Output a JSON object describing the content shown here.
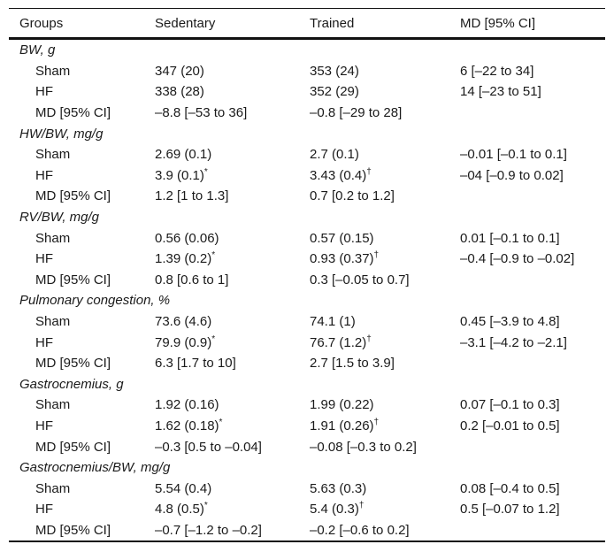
{
  "table": {
    "columns": [
      "Groups",
      "Sedentary",
      "Trained",
      "MD [95% CI]"
    ],
    "significance_markers": {
      "sedentary_hf": "*",
      "trained_hf": "†"
    },
    "sections": [
      {
        "header": "BW, g",
        "rows": [
          {
            "label": "Sham",
            "sedentary": "347 (20)",
            "sedentary_sup": "",
            "trained": "353 (24)",
            "trained_sup": "",
            "md": "6 [–22 to 34]"
          },
          {
            "label": "HF",
            "sedentary": "338 (28)",
            "sedentary_sup": "",
            "trained": "352 (29)",
            "trained_sup": "",
            "md": "14 [–23 to 51]"
          },
          {
            "label": "MD [95% CI]",
            "sedentary": "–8.8 [–53 to 36]",
            "sedentary_sup": "",
            "trained": "–0.8 [–29 to 28]",
            "trained_sup": "",
            "md": ""
          }
        ]
      },
      {
        "header": "HW/BW, mg/g",
        "rows": [
          {
            "label": "Sham",
            "sedentary": "2.69 (0.1)",
            "sedentary_sup": "",
            "trained": "2.7 (0.1)",
            "trained_sup": "",
            "md": "–0.01 [–0.1 to 0.1]"
          },
          {
            "label": "HF",
            "sedentary": "3.9 (0.1)",
            "sedentary_sup": "*",
            "trained": "3.43 (0.4)",
            "trained_sup": "†",
            "md": "–04 [–0.9 to 0.02]"
          },
          {
            "label": "MD [95% CI]",
            "sedentary": "1.2 [1 to 1.3]",
            "sedentary_sup": "",
            "trained": "0.7 [0.2 to 1.2]",
            "trained_sup": "",
            "md": ""
          }
        ]
      },
      {
        "header": "RV/BW, mg/g",
        "rows": [
          {
            "label": "Sham",
            "sedentary": "0.56 (0.06)",
            "sedentary_sup": "",
            "trained": "0.57 (0.15)",
            "trained_sup": "",
            "md": "0.01 [–0.1 to 0.1]"
          },
          {
            "label": "HF",
            "sedentary": "1.39 (0.2)",
            "sedentary_sup": "*",
            "trained": "0.93 (0.37)",
            "trained_sup": "†",
            "md": "–0.4 [–0.9 to –0.02]"
          },
          {
            "label": "MD [95% CI]",
            "sedentary": "0.8 [0.6 to 1]",
            "sedentary_sup": "",
            "trained": "0.3 [–0.05 to 0.7]",
            "trained_sup": "",
            "md": ""
          }
        ]
      },
      {
        "header": "Pulmonary congestion, %",
        "rows": [
          {
            "label": "Sham",
            "sedentary": "73.6 (4.6)",
            "sedentary_sup": "",
            "trained": "74.1 (1)",
            "trained_sup": "",
            "md": "0.45 [–3.9 to 4.8]"
          },
          {
            "label": "HF",
            "sedentary": "79.9 (0.9)",
            "sedentary_sup": "*",
            "trained": "76.7 (1.2)",
            "trained_sup": "†",
            "md": "–3.1 [–4.2 to –2.1]"
          },
          {
            "label": "MD [95% CI]",
            "sedentary": "6.3 [1.7 to 10]",
            "sedentary_sup": "",
            "trained": "2.7 [1.5 to 3.9]",
            "trained_sup": "",
            "md": ""
          }
        ]
      },
      {
        "header": "Gastrocnemius, g",
        "rows": [
          {
            "label": "Sham",
            "sedentary": "1.92 (0.16)",
            "sedentary_sup": "",
            "trained": "1.99 (0.22)",
            "trained_sup": "",
            "md": "0.07 [–0.1 to 0.3]"
          },
          {
            "label": "HF",
            "sedentary": "1.62 (0.18)",
            "sedentary_sup": "*",
            "trained": "1.91 (0.26)",
            "trained_sup": "†",
            "md": "0.2 [–0.01 to 0.5]"
          },
          {
            "label": "MD [95% CI]",
            "sedentary": "–0.3 [0.5 to –0.04]",
            "sedentary_sup": "",
            "trained": "–0.08 [–0.3 to 0.2]",
            "trained_sup": "",
            "md": ""
          }
        ]
      },
      {
        "header": "Gastrocnemius/BW, mg/g",
        "rows": [
          {
            "label": "Sham",
            "sedentary": "5.54 (0.4)",
            "sedentary_sup": "",
            "trained": "5.63 (0.3)",
            "trained_sup": "",
            "md": "0.08 [–0.4 to 0.5]"
          },
          {
            "label": "HF",
            "sedentary": "4.8 (0.5)",
            "sedentary_sup": "*",
            "trained": "5.4 (0.3)",
            "trained_sup": "†",
            "md": "0.5 [–0.07 to 1.2]"
          },
          {
            "label": "MD [95% CI]",
            "sedentary": "–0.7 [–1.2 to –0.2]",
            "sedentary_sup": "",
            "trained": "–0.2 [–0.6 to 0.2]",
            "trained_sup": "",
            "md": ""
          }
        ]
      }
    ]
  }
}
